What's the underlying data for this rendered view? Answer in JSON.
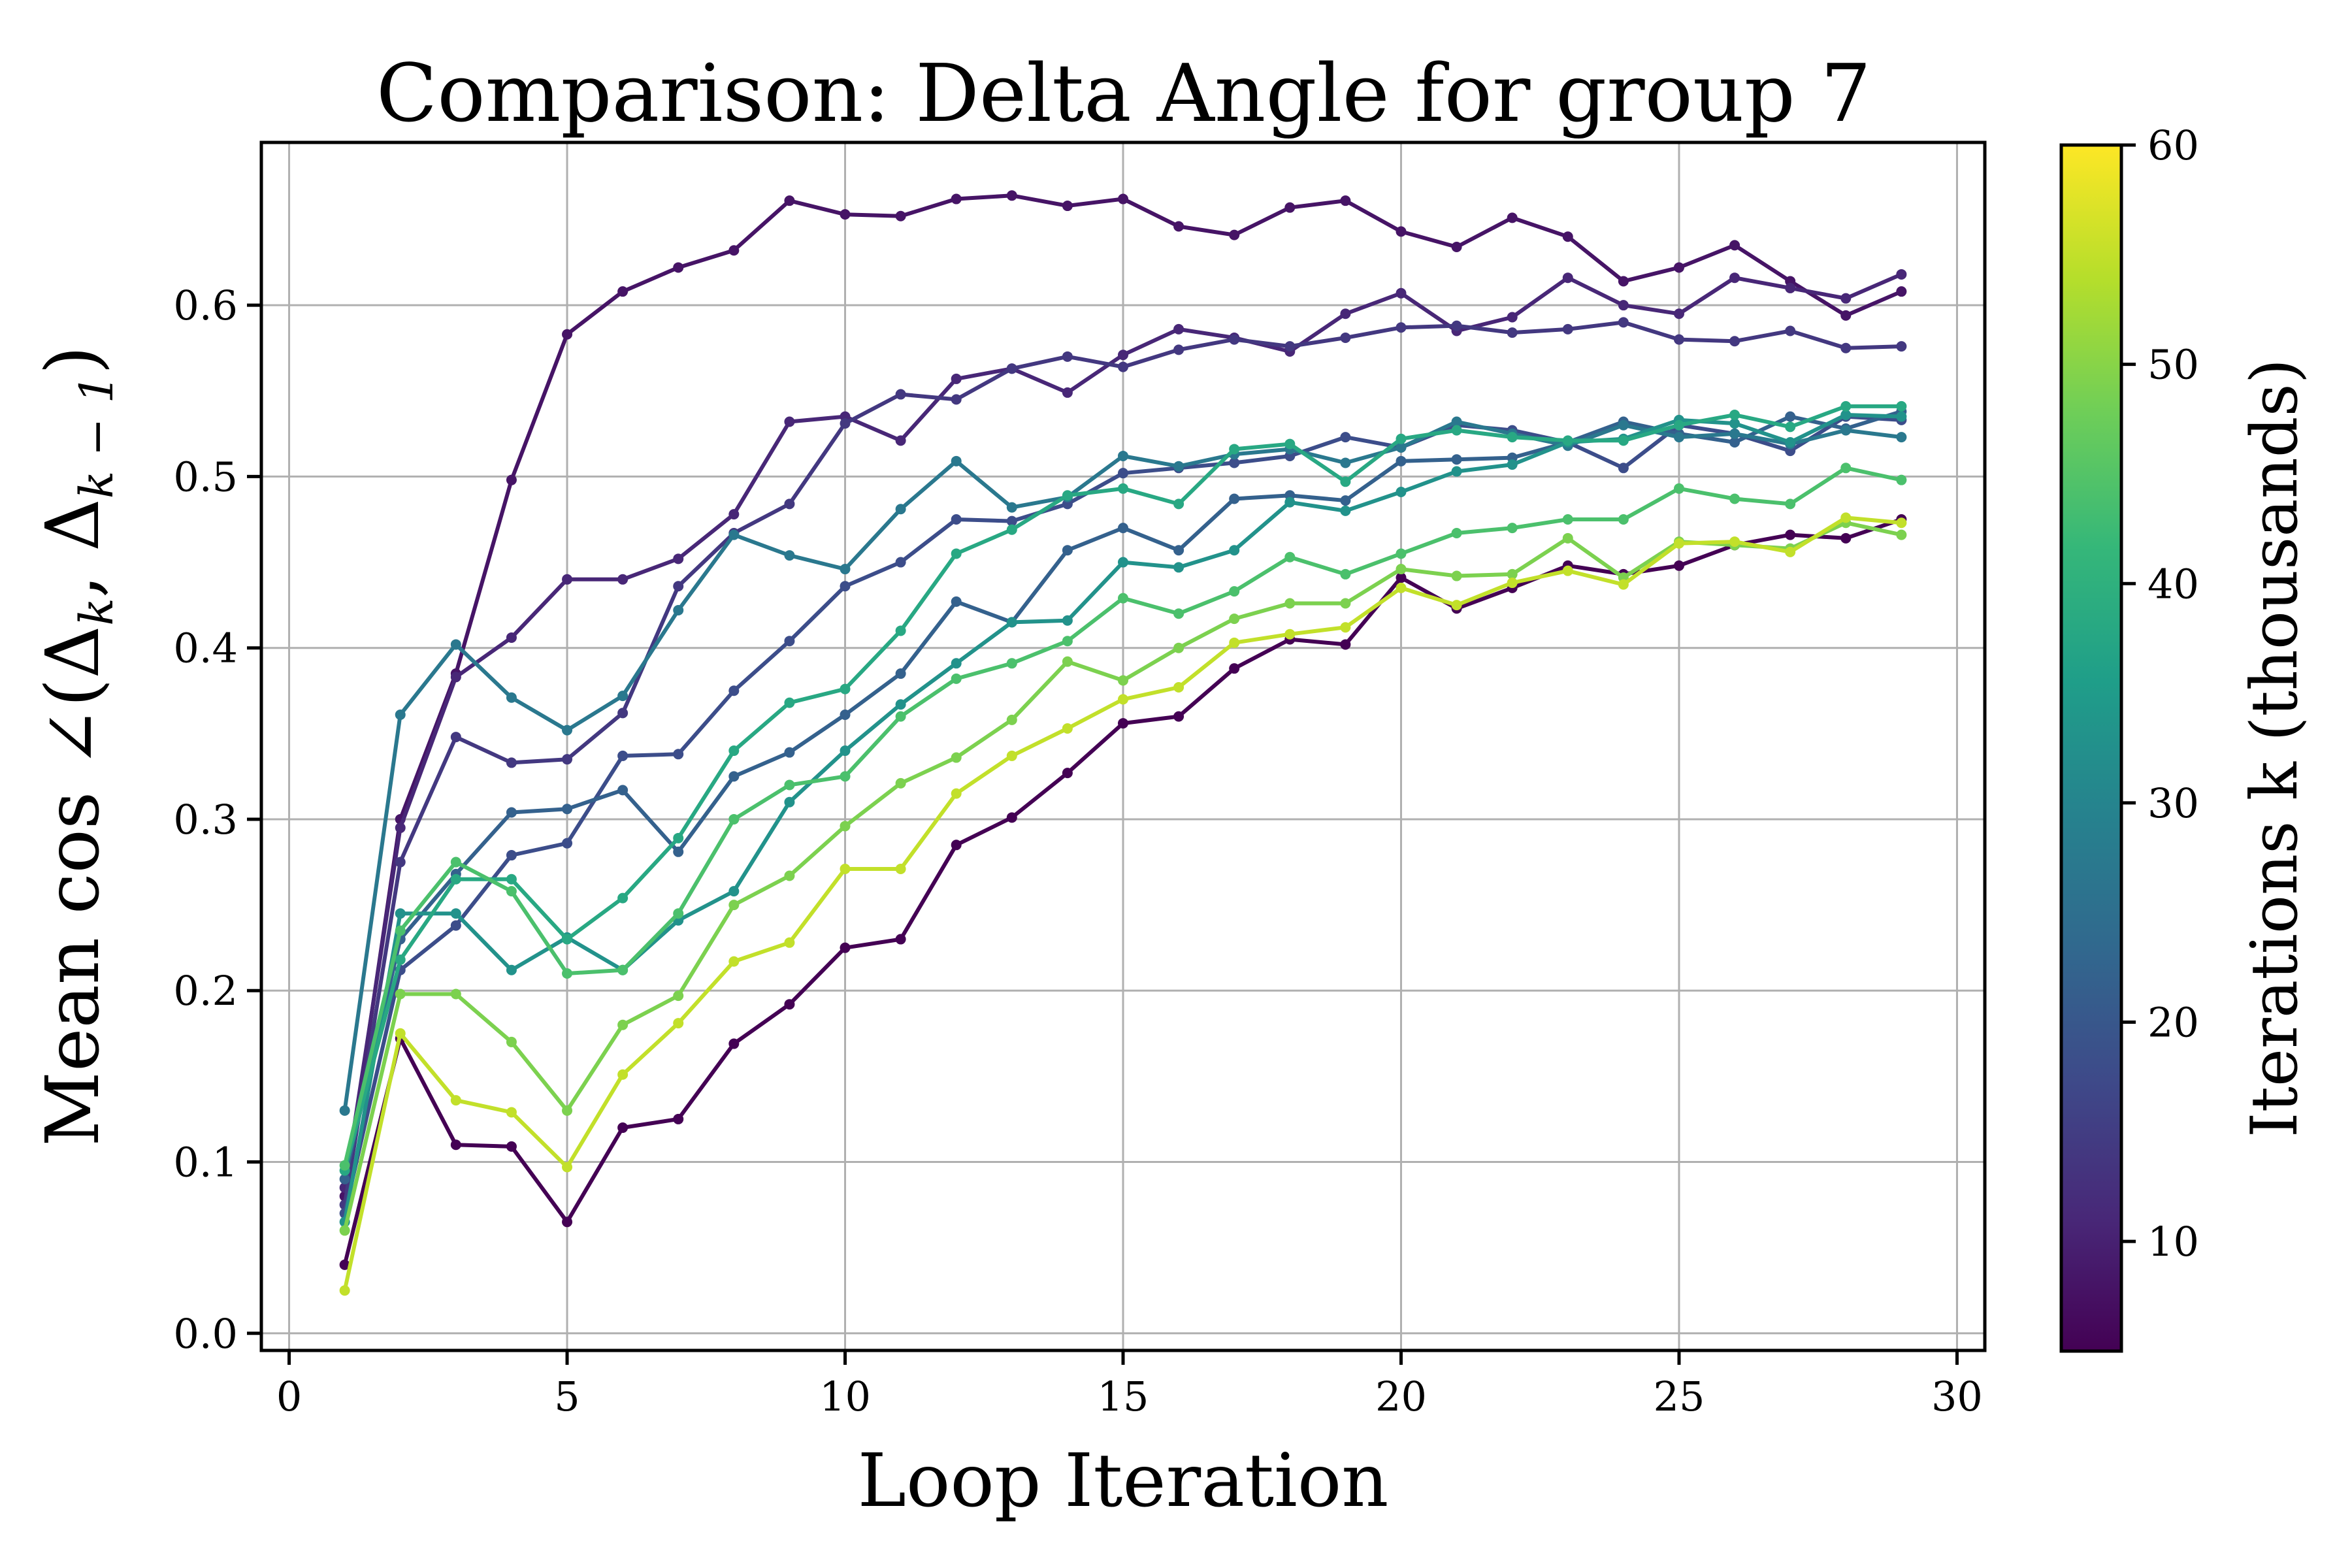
{
  "chart_data": {
    "type": "line",
    "title": "Comparison: Delta Angle for group 7",
    "xlabel": "Loop Iteration",
    "ylabel": "Mean cos ∠(Δ",
    "ylabel_sub_k": "k",
    "ylabel_sep": ", Δ",
    "ylabel_sub_km1": "k − 1",
    "ylabel_close": ")",
    "xlim": [
      -0.5,
      30.5
    ],
    "ylim": [
      -0.01,
      0.695
    ],
    "xticks": [
      0,
      5,
      10,
      15,
      20,
      25,
      30
    ],
    "yticks": [
      0.0,
      0.1,
      0.2,
      0.3,
      0.4,
      0.5,
      0.6
    ],
    "ytick_labels": [
      "0.0",
      "0.1",
      "0.2",
      "0.3",
      "0.4",
      "0.5",
      "0.6"
    ],
    "grid": true,
    "colorbar": {
      "label": "Iterations k (thousands)",
      "range": [
        5,
        60
      ],
      "ticks": [
        10,
        20,
        30,
        40,
        50,
        60
      ],
      "colormap": [
        "#440154",
        "#482878",
        "#3e4989",
        "#31688e",
        "#26828e",
        "#1f9e89",
        "#35b779",
        "#6ece58",
        "#b5de2b",
        "#fde725"
      ]
    },
    "x": [
      1,
      2,
      3,
      4,
      5,
      6,
      7,
      8,
      9,
      10,
      11,
      12,
      13,
      14,
      15,
      16,
      17,
      18,
      19,
      20,
      21,
      22,
      23,
      24,
      25,
      26,
      27,
      28,
      29
    ],
    "series": [
      {
        "name": "k=5",
        "k": 5,
        "values": [
          0.04,
          0.172,
          0.11,
          0.109,
          0.065,
          0.12,
          0.125,
          0.169,
          0.192,
          0.225,
          0.23,
          0.285,
          0.301,
          0.327,
          0.356,
          0.36,
          0.388,
          0.405,
          0.402,
          0.441,
          0.423,
          0.435,
          0.448,
          0.443,
          0.448,
          0.46,
          0.466,
          0.464,
          0.475
        ]
      },
      {
        "name": "k=8",
        "k": 8,
        "values": [
          0.08,
          0.3,
          0.385,
          0.498,
          0.583,
          0.608,
          0.622,
          0.632,
          0.661,
          0.653,
          0.652,
          0.662,
          0.664,
          0.658,
          0.662,
          0.646,
          0.641,
          0.657,
          0.661,
          0.643,
          0.634,
          0.651,
          0.64,
          0.614,
          0.622,
          0.635,
          0.614,
          0.594,
          0.608
        ]
      },
      {
        "name": "k=11",
        "k": 11,
        "values": [
          0.085,
          0.295,
          0.383,
          0.406,
          0.44,
          0.44,
          0.452,
          0.478,
          0.532,
          0.535,
          0.521,
          0.557,
          0.563,
          0.549,
          0.571,
          0.586,
          0.581,
          0.573,
          0.595,
          0.607,
          0.585,
          0.593,
          0.616,
          0.6,
          0.595,
          0.616,
          0.61,
          0.604,
          0.618
        ]
      },
      {
        "name": "k=14",
        "k": 14,
        "values": [
          0.075,
          0.275,
          0.348,
          0.333,
          0.335,
          0.362,
          0.436,
          0.467,
          0.484,
          0.531,
          0.548,
          0.545,
          0.563,
          0.57,
          0.564,
          0.574,
          0.58,
          0.576,
          0.581,
          0.587,
          0.588,
          0.584,
          0.586,
          0.59,
          0.58,
          0.579,
          0.585,
          0.575,
          0.576
        ]
      },
      {
        "name": "k=18",
        "k": 18,
        "values": [
          0.07,
          0.212,
          0.238,
          0.279,
          0.286,
          0.337,
          0.338,
          0.375,
          0.404,
          0.436,
          0.45,
          0.475,
          0.474,
          0.484,
          0.502,
          0.505,
          0.508,
          0.512,
          0.523,
          0.517,
          0.53,
          0.527,
          0.52,
          0.505,
          0.53,
          0.525,
          0.515,
          0.535,
          0.533
        ]
      },
      {
        "name": "k=22",
        "k": 22,
        "values": [
          0.09,
          0.23,
          0.268,
          0.304,
          0.306,
          0.317,
          0.281,
          0.325,
          0.339,
          0.361,
          0.385,
          0.427,
          0.415,
          0.457,
          0.47,
          0.457,
          0.487,
          0.489,
          0.486,
          0.509,
          0.51,
          0.511,
          0.52,
          0.532,
          0.525,
          0.52,
          0.535,
          0.528,
          0.538
        ]
      },
      {
        "name": "k=27",
        "k": 27,
        "values": [
          0.13,
          0.361,
          0.402,
          0.371,
          0.352,
          0.372,
          0.422,
          0.466,
          0.454,
          0.446,
          0.481,
          0.509,
          0.482,
          0.488,
          0.512,
          0.506,
          0.513,
          0.516,
          0.508,
          0.517,
          0.532,
          0.525,
          0.518,
          0.53,
          0.523,
          0.525,
          0.519,
          0.527,
          0.523
        ]
      },
      {
        "name": "k=33",
        "k": 33,
        "values": [
          0.065,
          0.245,
          0.245,
          0.212,
          0.231,
          0.212,
          0.241,
          0.258,
          0.31,
          0.34,
          0.367,
          0.391,
          0.415,
          0.416,
          0.45,
          0.447,
          0.457,
          0.485,
          0.48,
          0.491,
          0.503,
          0.507,
          0.52,
          0.522,
          0.533,
          0.531,
          0.52,
          0.536,
          0.535
        ]
      },
      {
        "name": "k=38",
        "k": 38,
        "values": [
          0.095,
          0.218,
          0.265,
          0.265,
          0.23,
          0.254,
          0.289,
          0.34,
          0.368,
          0.376,
          0.41,
          0.455,
          0.469,
          0.489,
          0.493,
          0.484,
          0.516,
          0.519,
          0.497,
          0.522,
          0.527,
          0.523,
          0.521,
          0.521,
          0.53,
          0.536,
          0.529,
          0.541,
          0.541
        ]
      },
      {
        "name": "k=44",
        "k": 44,
        "values": [
          0.098,
          0.235,
          0.275,
          0.258,
          0.21,
          0.212,
          0.245,
          0.3,
          0.32,
          0.325,
          0.36,
          0.382,
          0.391,
          0.404,
          0.429,
          0.42,
          0.433,
          0.453,
          0.443,
          0.455,
          0.467,
          0.47,
          0.475,
          0.475,
          0.493,
          0.487,
          0.484,
          0.505,
          0.498
        ]
      },
      {
        "name": "k=49",
        "k": 49,
        "values": [
          0.06,
          0.198,
          0.198,
          0.17,
          0.13,
          0.18,
          0.197,
          0.25,
          0.267,
          0.296,
          0.321,
          0.336,
          0.358,
          0.392,
          0.381,
          0.4,
          0.417,
          0.426,
          0.426,
          0.446,
          0.442,
          0.443,
          0.464,
          0.441,
          0.462,
          0.46,
          0.458,
          0.473,
          0.466
        ]
      },
      {
        "name": "k=55",
        "k": 55,
        "values": [
          0.025,
          0.175,
          0.136,
          0.129,
          0.097,
          0.151,
          0.181,
          0.217,
          0.228,
          0.271,
          0.271,
          0.315,
          0.337,
          0.353,
          0.37,
          0.377,
          0.403,
          0.408,
          0.412,
          0.435,
          0.425,
          0.438,
          0.445,
          0.437,
          0.461,
          0.462,
          0.456,
          0.476,
          0.473
        ]
      }
    ]
  }
}
